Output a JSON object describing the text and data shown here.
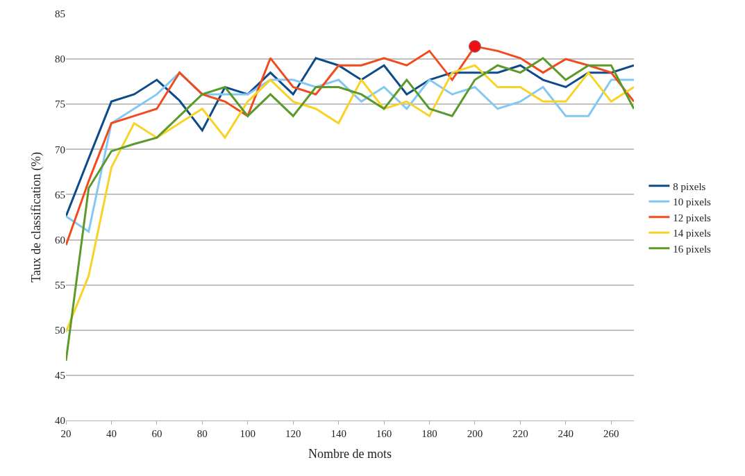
{
  "chart_data": {
    "type": "line",
    "xlabel": "Nombre de mots",
    "ylabel": "Taux de classification (%)",
    "x": [
      20,
      30,
      40,
      50,
      60,
      70,
      80,
      90,
      100,
      110,
      120,
      130,
      140,
      150,
      160,
      170,
      180,
      190,
      200,
      210,
      220,
      230,
      240,
      250,
      260,
      270
    ],
    "xlim": [
      20,
      270
    ],
    "xticks": [
      20,
      40,
      60,
      80,
      100,
      120,
      140,
      160,
      180,
      200,
      220,
      240,
      260
    ],
    "ylim": [
      40,
      85
    ],
    "yticks": [
      40,
      45,
      50,
      55,
      60,
      65,
      70,
      75,
      80,
      85
    ],
    "grid": "y",
    "legend": "right",
    "marker": "none",
    "line_style": "solid",
    "series": [
      {
        "name": "8 pixels",
        "color": "#0d4a8a",
        "values": [
          62.6,
          69,
          75.3,
          76.1,
          77.7,
          75.4,
          72.1,
          76.9,
          76.1,
          78.5,
          76.1,
          80.1,
          79.3,
          77.7,
          79.3,
          76.1,
          77.7,
          78.5,
          78.5,
          78.5,
          79.3,
          77.7,
          76.9,
          78.5,
          78.5,
          79.3
        ]
      },
      {
        "name": "10 pixels",
        "color": "#83c8f4",
        "values": [
          62.6,
          60.9,
          72.9,
          74.5,
          76.1,
          78.5,
          76.1,
          76.1,
          76.1,
          77.7,
          77.7,
          76.9,
          77.7,
          75.3,
          76.9,
          74.5,
          77.7,
          76.1,
          76.9,
          74.5,
          75.3,
          76.9,
          73.7,
          73.7,
          77.7,
          77.7
        ]
      },
      {
        "name": "12 pixels",
        "color": "#f24a1d",
        "values": [
          59.4,
          66.5,
          72.9,
          73.7,
          74.5,
          78.5,
          76.1,
          75.3,
          73.7,
          80.1,
          76.9,
          76.1,
          79.3,
          79.3,
          80.1,
          79.3,
          80.9,
          77.7,
          81.4,
          80.9,
          80.1,
          78.5,
          80.0,
          79.3,
          78.5,
          75.3
        ]
      },
      {
        "name": "14 pixels",
        "color": "#f9d226",
        "values": [
          49.8,
          56,
          68,
          72.9,
          71.3,
          72.9,
          74.5,
          71.3,
          75.3,
          77.7,
          75.3,
          74.5,
          72.9,
          77.7,
          74.5,
          75.3,
          73.7,
          78.5,
          79.3,
          76.9,
          76.9,
          75.3,
          75.3,
          78.5,
          75.3,
          76.9
        ]
      },
      {
        "name": "16 pixels",
        "color": "#5a9a2a",
        "values": [
          46.6,
          65.7,
          69.8,
          70.6,
          71.3,
          73.7,
          76.1,
          76.9,
          73.7,
          76.1,
          73.7,
          76.9,
          76.9,
          76.1,
          74.5,
          77.7,
          74.5,
          73.7,
          77.7,
          79.3,
          78.5,
          80.1,
          77.7,
          79.3,
          79.3,
          74.5
        ]
      },
      {
        "type": "scatter",
        "color": "#ee1111",
        "marker": "circle",
        "x": [
          200
        ],
        "values": [
          81.4
        ]
      }
    ]
  }
}
